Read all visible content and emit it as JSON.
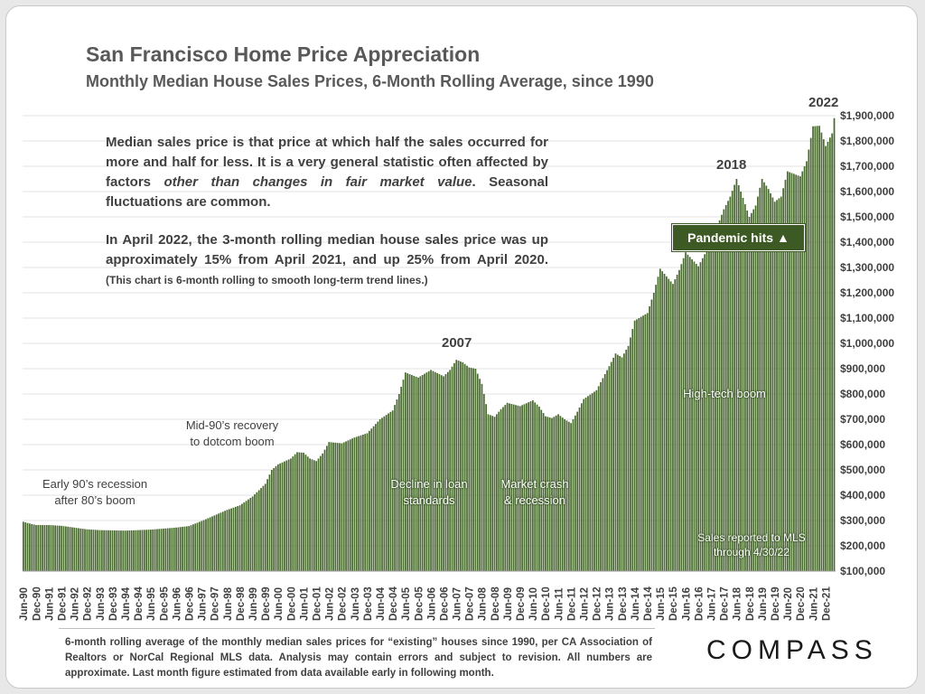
{
  "title": "San Francisco Home Price Appreciation",
  "subtitle": "Monthly Median House Sales Prices, 6-Month Rolling Average, since 1990",
  "notes": {
    "para1_a": "Median sales price is that price at which half the sales occurred for more and half for less. It is a very general statistic often affected by factors ",
    "para1_em": "other than changes in fair market value",
    "para1_b": ". Seasonal fluctuations are common.",
    "para2": "In April 2022, the 3-month rolling median house sales price was up approximately 15% from April 2021, and up 25% from April 2020. ",
    "para2_small": "(This chart is 6-month rolling to smooth long-term trend lines.)"
  },
  "annotations": {
    "early90s_line1": "Early 90’s recession",
    "early90s_line2": "after 80’s boom",
    "mid90s_line1": "Mid-90’s recovery",
    "mid90s_line2": "to dotcom boom",
    "decline_line1": "Decline in loan",
    "decline_line2": "standards",
    "crash_line1": "Market crash",
    "crash_line2": "& recession",
    "hightech": "High-tech boom",
    "sales_line1": "Sales reported to MLS",
    "sales_line2": "through 4/30/22",
    "year2007": "2007",
    "year2018": "2018",
    "year2022": "2022",
    "pandemic": "Pandemic hits ▲"
  },
  "footer": "6-month rolling average of the monthly median sales prices for “existing” houses since 1990, per CA Association of Realtors or NorCal Regional MLS data.  Analysis may contain errors and subject to revision. All numbers are approximate. Last month figure estimated from data available early in following month.",
  "logo": "COMPASS",
  "colors": {
    "bar": "#4a6b2f",
    "bar_edge": "#ffffff",
    "grid": "#e3e3e3",
    "text": "#404040"
  },
  "chart_data": {
    "type": "bar",
    "title": "San Francisco Home Price Appreciation",
    "subtitle": "Monthly Median House Sales Prices, 6-Month Rolling Average, since 1990",
    "ylim": [
      100000,
      1900000
    ],
    "ytick_labels": [
      "$100,000",
      "$200,000",
      "$300,000",
      "$400,000",
      "$500,000",
      "$600,000",
      "$700,000",
      "$800,000",
      "$900,000",
      "$1,000,000",
      "$1,100,000",
      "$1,200,000",
      "$1,300,000",
      "$1,400,000",
      "$1,500,000",
      "$1,600,000",
      "$1,700,000",
      "$1,800,000",
      "$1,900,000"
    ],
    "xtick_labels": [
      "Jun-90",
      "Dec-90",
      "Jun-91",
      "Dec-91",
      "Jun-92",
      "Dec-92",
      "Jun-93",
      "Dec-93",
      "Jun-94",
      "Dec-94",
      "Jun-95",
      "Dec-95",
      "Jun-96",
      "Dec-96",
      "Jun-97",
      "Dec-97",
      "Jun-98",
      "Dec-98",
      "Jun-99",
      "Dec-99",
      "Jun-00",
      "Dec-00",
      "Jun-01",
      "Dec-01",
      "Jun-02",
      "Dec-02",
      "Jun-03",
      "Dec-03",
      "Jun-04",
      "Dec-04",
      "Jun-05",
      "Dec-05",
      "Jun-06",
      "Dec-06",
      "Jun-07",
      "Dec-07",
      "Jun-08",
      "Dec-08",
      "Jun-09",
      "Dec-09",
      "Jun-10",
      "Dec-10",
      "Jun-11",
      "Dec-11",
      "Jun-12",
      "Dec-12",
      "Jun-13",
      "Dec-13",
      "Jun-14",
      "Dec-14",
      "Jun-15",
      "Dec-15",
      "Jun-16",
      "Dec-16",
      "Jun-17",
      "Dec-17",
      "Jun-18",
      "Dec-18",
      "Jun-19",
      "Dec-19",
      "Jun-20",
      "Dec-20",
      "Jun-21",
      "Dec-21"
    ],
    "grid": true,
    "legend": "none",
    "yaxis_side": "right",
    "x_start": "1990-06",
    "x_end": "2022-04",
    "anchors": [
      [
        "1990-06",
        295000
      ],
      [
        "1990-09",
        288000
      ],
      [
        "1990-12",
        282000
      ],
      [
        "1991-06",
        282000
      ],
      [
        "1991-12",
        279000
      ],
      [
        "1992-06",
        272000
      ],
      [
        "1992-12",
        265000
      ],
      [
        "1993-06",
        262000
      ],
      [
        "1993-12",
        261000
      ],
      [
        "1994-06",
        260000
      ],
      [
        "1994-12",
        262000
      ],
      [
        "1995-06",
        264000
      ],
      [
        "1995-12",
        268000
      ],
      [
        "1996-06",
        272000
      ],
      [
        "1996-12",
        278000
      ],
      [
        "1997-06",
        298000
      ],
      [
        "1997-12",
        320000
      ],
      [
        "1998-06",
        342000
      ],
      [
        "1998-12",
        360000
      ],
      [
        "1999-06",
        395000
      ],
      [
        "1999-12",
        445000
      ],
      [
        "2000-03",
        500000
      ],
      [
        "2000-06",
        522000
      ],
      [
        "2000-12",
        545000
      ],
      [
        "2001-03",
        570000
      ],
      [
        "2001-06",
        568000
      ],
      [
        "2001-09",
        545000
      ],
      [
        "2001-12",
        535000
      ],
      [
        "2002-03",
        565000
      ],
      [
        "2002-06",
        610000
      ],
      [
        "2002-12",
        605000
      ],
      [
        "2003-06",
        628000
      ],
      [
        "2003-12",
        645000
      ],
      [
        "2004-06",
        700000
      ],
      [
        "2004-12",
        735000
      ],
      [
        "2005-03",
        800000
      ],
      [
        "2005-06",
        885000
      ],
      [
        "2005-12",
        865000
      ],
      [
        "2006-06",
        895000
      ],
      [
        "2006-12",
        870000
      ],
      [
        "2007-03",
        895000
      ],
      [
        "2007-06",
        935000
      ],
      [
        "2007-09",
        925000
      ],
      [
        "2007-12",
        905000
      ],
      [
        "2008-03",
        900000
      ],
      [
        "2008-06",
        840000
      ],
      [
        "2008-09",
        720000
      ],
      [
        "2008-12",
        710000
      ],
      [
        "2009-03",
        740000
      ],
      [
        "2009-06",
        765000
      ],
      [
        "2009-12",
        752000
      ],
      [
        "2010-06",
        775000
      ],
      [
        "2010-09",
        750000
      ],
      [
        "2010-12",
        712000
      ],
      [
        "2011-03",
        705000
      ],
      [
        "2011-06",
        720000
      ],
      [
        "2011-09",
        700000
      ],
      [
        "2011-12",
        685000
      ],
      [
        "2012-03",
        730000
      ],
      [
        "2012-06",
        780000
      ],
      [
        "2012-12",
        815000
      ],
      [
        "2013-06",
        910000
      ],
      [
        "2013-09",
        960000
      ],
      [
        "2013-12",
        945000
      ],
      [
        "2014-03",
        990000
      ],
      [
        "2014-06",
        1090000
      ],
      [
        "2014-12",
        1120000
      ],
      [
        "2015-03",
        1200000
      ],
      [
        "2015-06",
        1295000
      ],
      [
        "2015-12",
        1235000
      ],
      [
        "2016-03",
        1290000
      ],
      [
        "2016-06",
        1360000
      ],
      [
        "2016-12",
        1305000
      ],
      [
        "2017-06",
        1400000
      ],
      [
        "2017-12",
        1530000
      ],
      [
        "2018-03",
        1580000
      ],
      [
        "2018-06",
        1650000
      ],
      [
        "2018-09",
        1575000
      ],
      [
        "2018-12",
        1500000
      ],
      [
        "2019-03",
        1545000
      ],
      [
        "2019-06",
        1650000
      ],
      [
        "2019-09",
        1610000
      ],
      [
        "2019-12",
        1560000
      ],
      [
        "2020-03",
        1580000
      ],
      [
        "2020-06",
        1680000
      ],
      [
        "2020-12",
        1660000
      ],
      [
        "2021-03",
        1720000
      ],
      [
        "2021-06",
        1858000
      ],
      [
        "2021-09",
        1860000
      ],
      [
        "2021-12",
        1780000
      ],
      [
        "2022-03",
        1830000
      ],
      [
        "2022-04",
        1890000
      ]
    ]
  }
}
